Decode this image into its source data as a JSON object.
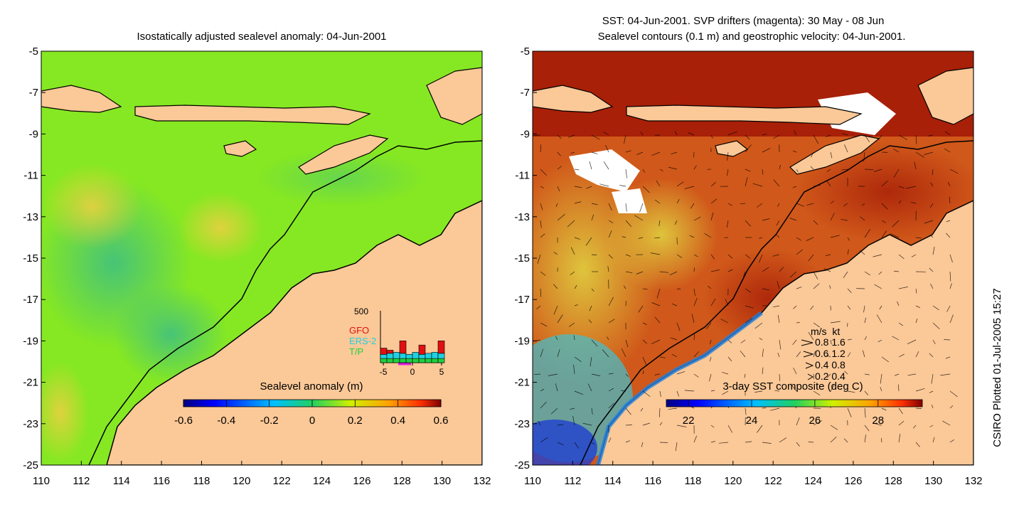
{
  "left_panel": {
    "title": "Isostatically adjusted sealevel anomaly: 04-Jun-2001",
    "colorbar": {
      "label": "Sealevel anomaly (m)",
      "ticks": [
        "-0.6",
        "-0.4",
        "-0.2",
        "0",
        "0.2",
        "0.4",
        "0.6"
      ],
      "range": [
        -0.6,
        0.6
      ]
    },
    "inset_histogram": {
      "ymax_label": "500",
      "xticks": [
        "-5",
        "0",
        "5"
      ],
      "legend": [
        {
          "label": "GFO",
          "color": "#e01010"
        },
        {
          "label": "ERS-2",
          "color": "#20d0e0"
        },
        {
          "label": "T/P",
          "color": "#20d040"
        }
      ],
      "bars": [
        {
          "day": -5,
          "tp": 40,
          "ers": 40,
          "gfo": 60
        },
        {
          "day": -4,
          "tp": 40,
          "ers": 50,
          "gfo": 30
        },
        {
          "day": -3,
          "tp": 40,
          "ers": 60,
          "gfo": 0
        },
        {
          "day": -2,
          "tp": 40,
          "ers": 50,
          "gfo": 120
        },
        {
          "day": -1,
          "tp": 40,
          "ers": 40,
          "gfo": 0
        },
        {
          "day": 0,
          "tp": 40,
          "ers": 60,
          "gfo": 0
        },
        {
          "day": 1,
          "tp": 40,
          "ers": 40,
          "gfo": 90
        },
        {
          "day": 2,
          "tp": 40,
          "ers": 50,
          "gfo": 0
        },
        {
          "day": 3,
          "tp": 40,
          "ers": 60,
          "gfo": 0
        },
        {
          "day": 4,
          "tp": 40,
          "ers": 50,
          "gfo": 120
        }
      ]
    }
  },
  "right_panel": {
    "title_line1": "SST: 04-Jun-2001. SVP drifters (magenta): 30 May - 08 Jun",
    "title_line2": "Sealevel contours (0.1 m) and geostrophic velocity: 04-Jun-2001.",
    "colorbar": {
      "label": "3-day SST composite (deg C)",
      "ticks": [
        "22",
        "24",
        "26",
        "28"
      ],
      "range": [
        21.3,
        29.4
      ]
    },
    "velocity_legend": {
      "header": "m/s  kt",
      "rows": [
        "0.8  1.6",
        "0.6  1.2",
        "0.4  0.8",
        "0.2  0.4"
      ]
    }
  },
  "axes": {
    "x_ticks": [
      "110",
      "112",
      "114",
      "116",
      "118",
      "120",
      "122",
      "124",
      "126",
      "128",
      "130",
      "132"
    ],
    "y_ticks": [
      "-5",
      "-7",
      "-9",
      "-11",
      "-13",
      "-15",
      "-17",
      "-19",
      "-21",
      "-23",
      "-25"
    ],
    "lon_range": [
      110,
      132
    ],
    "lat_range": [
      -25,
      -5
    ]
  },
  "footer": {
    "credit": "CSIRO Plotted 01-Jul-2005 15:27"
  },
  "colors": {
    "land": "#fbc897",
    "coast": "#000000",
    "sla_background": "#86e822",
    "sst_background": "#d0581a"
  }
}
